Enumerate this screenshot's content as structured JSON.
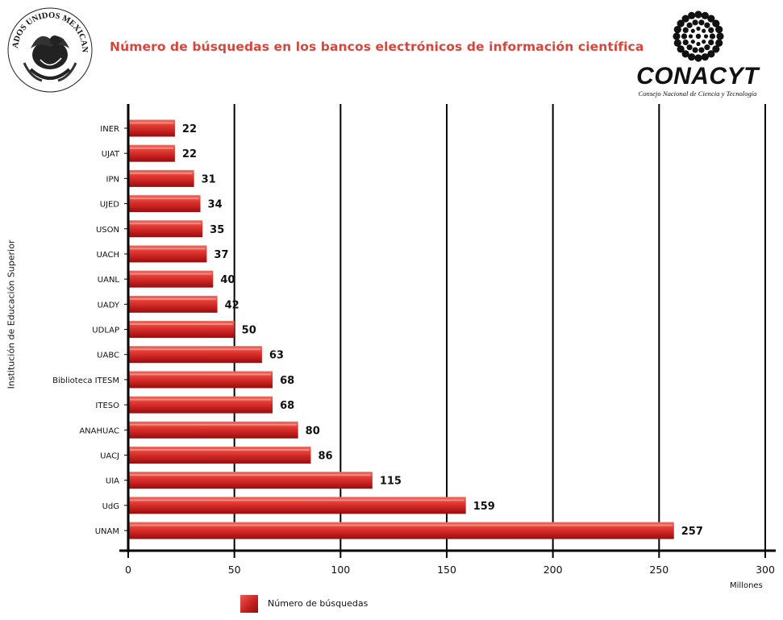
{
  "header": {
    "seal_text": "ESTADOS UNIDOS MEXICANOS",
    "title": "Número de búsquedas en los bancos electrónicos de información científica",
    "logo_word": "CONACYT",
    "logo_subtitle": "Consejo Nacional de Ciencia y Tecnología"
  },
  "chart_data": {
    "type": "bar",
    "orientation": "horizontal",
    "categories": [
      "INER",
      "UJAT",
      "IPN",
      "UJED",
      "USON",
      "UACH",
      "UANL",
      "UADY",
      "UDLAP",
      "UABC",
      "Biblioteca ITESM",
      "ITESO",
      "ANAHUAC",
      "UACJ",
      "UIA",
      "UdG",
      "UNAM"
    ],
    "series": [
      {
        "name": "Número de búsquedas",
        "values": [
          22,
          22,
          31,
          34,
          35,
          37,
          40,
          42,
          50,
          63,
          68,
          68,
          80,
          86,
          115,
          159,
          257
        ]
      }
    ],
    "xlim": [
      0,
      300
    ],
    "xticks": [
      0,
      50,
      100,
      150,
      200,
      250,
      300
    ],
    "xlabel": "Millones",
    "ylabel": "Institución de Educación Superior",
    "grid": "vertical",
    "legend": "bottom",
    "colors": {
      "bar": "#c8201e",
      "bar_light": "#f06a5e",
      "bar_dark": "#8f1010",
      "title": "#d9443b"
    }
  }
}
